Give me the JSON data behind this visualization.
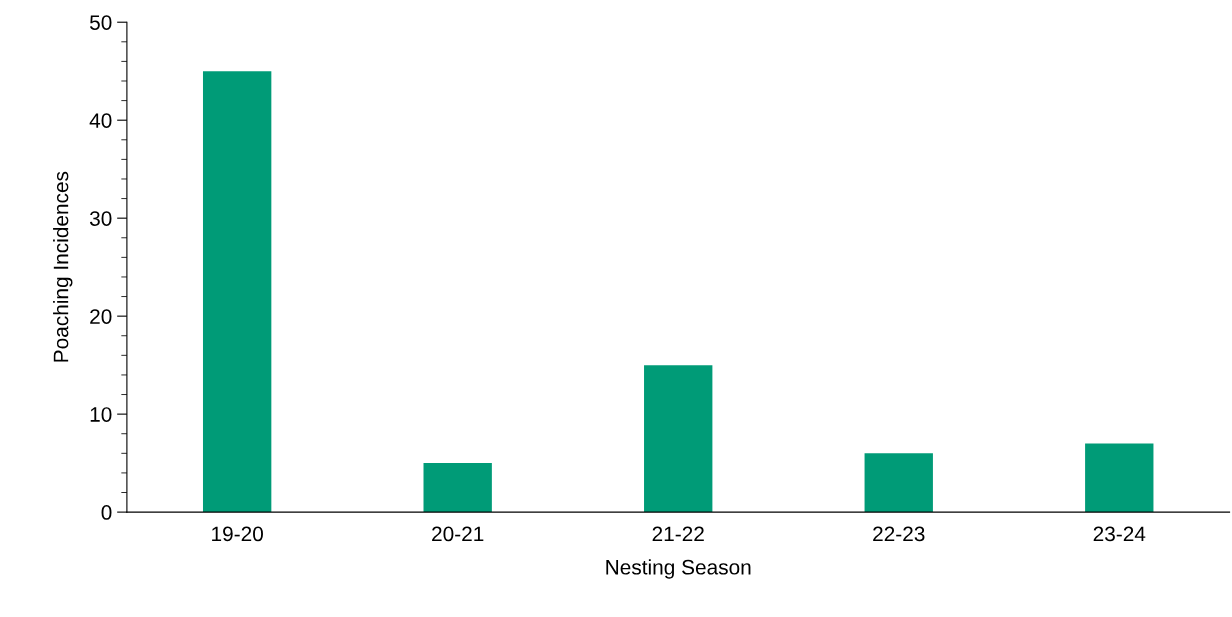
{
  "chart_data": {
    "type": "bar",
    "xlabel": "Nesting Season",
    "ylabel": "Poaching Incidences",
    "categories": [
      "19-20",
      "20-21",
      "21-22",
      "22-23",
      "23-24"
    ],
    "values": [
      45,
      5,
      15,
      6,
      7
    ],
    "color": "#009b77",
    "ylim": [
      0,
      50
    ],
    "yticks": [
      0,
      10,
      20,
      30,
      40,
      50
    ],
    "grid": false,
    "legend": false
  }
}
